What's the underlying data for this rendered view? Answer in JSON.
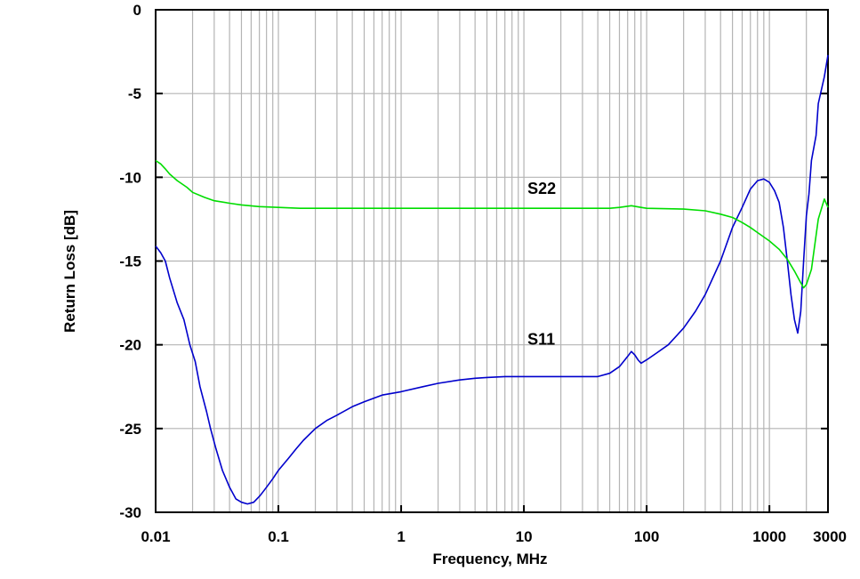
{
  "chart_data": {
    "type": "line",
    "title": "",
    "xlabel": "Frequency, MHz",
    "ylabel": "Return Loss [dB]",
    "xscale": "log",
    "xlim": [
      0.01,
      3000
    ],
    "ylim": [
      -30,
      0
    ],
    "grid": true,
    "x_ticks": [
      {
        "value": 0.01,
        "label": "0.01"
      },
      {
        "value": 0.1,
        "label": "0.1"
      },
      {
        "value": 1,
        "label": "1"
      },
      {
        "value": 10,
        "label": "10"
      },
      {
        "value": 100,
        "label": "100"
      },
      {
        "value": 1000,
        "label": "1000"
      },
      {
        "value": 3000,
        "label": "3000"
      }
    ],
    "y_ticks": [
      {
        "value": 0,
        "label": "0"
      },
      {
        "value": -5,
        "label": "-5"
      },
      {
        "value": -10,
        "label": "-10"
      },
      {
        "value": -15,
        "label": "-15"
      },
      {
        "value": -20,
        "label": "-20"
      },
      {
        "value": -25,
        "label": "-25"
      },
      {
        "value": -30,
        "label": "-30"
      }
    ],
    "series": [
      {
        "name": "S11",
        "label": "S11",
        "color": "#0000cc",
        "label_at": {
          "x": 10.7,
          "y": -20
        },
        "points": [
          [
            0.01,
            -14.1
          ],
          [
            0.011,
            -14.5
          ],
          [
            0.012,
            -15.0
          ],
          [
            0.013,
            -16.0
          ],
          [
            0.015,
            -17.5
          ],
          [
            0.017,
            -18.5
          ],
          [
            0.019,
            -20.0
          ],
          [
            0.021,
            -21.0
          ],
          [
            0.023,
            -22.5
          ],
          [
            0.026,
            -24.0
          ],
          [
            0.028,
            -25.0
          ],
          [
            0.031,
            -26.2
          ],
          [
            0.035,
            -27.5
          ],
          [
            0.04,
            -28.5
          ],
          [
            0.045,
            -29.2
          ],
          [
            0.05,
            -29.4
          ],
          [
            0.056,
            -29.5
          ],
          [
            0.063,
            -29.4
          ],
          [
            0.071,
            -29.0
          ],
          [
            0.08,
            -28.5
          ],
          [
            0.09,
            -28.0
          ],
          [
            0.1,
            -27.5
          ],
          [
            0.12,
            -26.8
          ],
          [
            0.14,
            -26.2
          ],
          [
            0.16,
            -25.7
          ],
          [
            0.2,
            -25.0
          ],
          [
            0.25,
            -24.5
          ],
          [
            0.3,
            -24.2
          ],
          [
            0.4,
            -23.7
          ],
          [
            0.5,
            -23.4
          ],
          [
            0.7,
            -23.0
          ],
          [
            1,
            -22.8
          ],
          [
            1.5,
            -22.5
          ],
          [
            2,
            -22.3
          ],
          [
            3,
            -22.1
          ],
          [
            4,
            -22.0
          ],
          [
            5,
            -21.95
          ],
          [
            7,
            -21.9
          ],
          [
            10,
            -21.9
          ],
          [
            20,
            -21.9
          ],
          [
            40,
            -21.9
          ],
          [
            50,
            -21.7
          ],
          [
            60,
            -21.3
          ],
          [
            70,
            -20.7
          ],
          [
            75,
            -20.4
          ],
          [
            80,
            -20.6
          ],
          [
            85,
            -20.9
          ],
          [
            90,
            -21.1
          ],
          [
            100,
            -20.9
          ],
          [
            120,
            -20.5
          ],
          [
            150,
            -20.0
          ],
          [
            200,
            -19.0
          ],
          [
            250,
            -18.0
          ],
          [
            300,
            -17.0
          ],
          [
            400,
            -15.0
          ],
          [
            500,
            -13.0
          ],
          [
            600,
            -11.8
          ],
          [
            700,
            -10.7
          ],
          [
            800,
            -10.2
          ],
          [
            900,
            -10.1
          ],
          [
            1000,
            -10.3
          ],
          [
            1100,
            -10.8
          ],
          [
            1200,
            -11.5
          ],
          [
            1300,
            -13.0
          ],
          [
            1400,
            -15.0
          ],
          [
            1500,
            -17.0
          ],
          [
            1600,
            -18.5
          ],
          [
            1700,
            -19.3
          ],
          [
            1800,
            -18.0
          ],
          [
            1900,
            -15.0
          ],
          [
            2000,
            -12.3
          ],
          [
            2100,
            -11.0
          ],
          [
            2200,
            -9.0
          ],
          [
            2400,
            -7.5
          ],
          [
            2500,
            -5.6
          ],
          [
            2800,
            -4.0
          ],
          [
            3000,
            -2.7
          ]
        ]
      },
      {
        "name": "S22",
        "label": "S22",
        "color": "#00dd00",
        "label_at": {
          "x": 10.7,
          "y": -11
        },
        "points": [
          [
            0.01,
            -9.0
          ],
          [
            0.011,
            -9.2
          ],
          [
            0.012,
            -9.5
          ],
          [
            0.013,
            -9.8
          ],
          [
            0.015,
            -10.2
          ],
          [
            0.018,
            -10.6
          ],
          [
            0.02,
            -10.9
          ],
          [
            0.025,
            -11.2
          ],
          [
            0.03,
            -11.4
          ],
          [
            0.04,
            -11.55
          ],
          [
            0.05,
            -11.65
          ],
          [
            0.07,
            -11.75
          ],
          [
            0.1,
            -11.8
          ],
          [
            0.15,
            -11.85
          ],
          [
            1,
            -11.85
          ],
          [
            10,
            -11.85
          ],
          [
            50,
            -11.85
          ],
          [
            60,
            -11.8
          ],
          [
            75,
            -11.7
          ],
          [
            90,
            -11.8
          ],
          [
            100,
            -11.85
          ],
          [
            200,
            -11.9
          ],
          [
            300,
            -12.0
          ],
          [
            400,
            -12.2
          ],
          [
            500,
            -12.4
          ],
          [
            600,
            -12.7
          ],
          [
            700,
            -13.0
          ],
          [
            800,
            -13.3
          ],
          [
            1000,
            -13.8
          ],
          [
            1200,
            -14.3
          ],
          [
            1400,
            -14.9
          ],
          [
            1600,
            -15.6
          ],
          [
            1800,
            -16.3
          ],
          [
            1900,
            -16.6
          ],
          [
            2000,
            -16.4
          ],
          [
            2200,
            -15.5
          ],
          [
            2500,
            -12.5
          ],
          [
            2800,
            -11.3
          ],
          [
            3000,
            -11.8
          ]
        ]
      }
    ]
  }
}
